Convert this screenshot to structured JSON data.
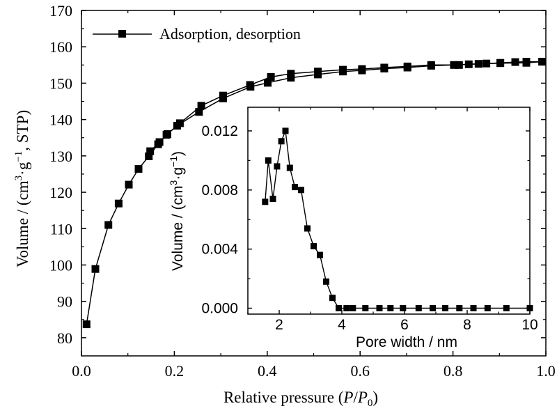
{
  "chart_data": [
    {
      "type": "line",
      "xlabel": "Relative pressure (P/P0)",
      "xlabel_parts": {
        "pre": "Relative pressure (",
        "p1": "P",
        "slash": "/",
        "p2": "P",
        "sub": "0",
        "post": ")"
      },
      "ylabel": "Volume / (cm3·g−1, STP)",
      "ylabel_parts": {
        "pre": "Volume / (cm",
        "sup1": "3",
        "mid": "·g",
        "sup2": "−1",
        "post": ", STP)"
      },
      "xlim": [
        0.0,
        1.0
      ],
      "ylim": [
        75,
        170
      ],
      "x_ticks": [
        "0.0",
        "0.2",
        "0.4",
        "0.6",
        "0.8",
        "1.0"
      ],
      "y_ticks": [
        "80",
        "90",
        "100",
        "110",
        "120",
        "130",
        "140",
        "150",
        "160",
        "170"
      ],
      "legend": {
        "label": "Adsorption, desorption",
        "position": "top-left"
      },
      "series": [
        {
          "name": "Adsorption",
          "x": [
            0.011,
            0.03,
            0.058,
            0.08,
            0.102,
            0.123,
            0.145,
            0.165,
            0.183,
            0.206,
            0.253,
            0.305,
            0.364,
            0.401,
            0.451,
            0.509,
            0.563,
            0.604,
            0.652,
            0.702,
            0.753,
            0.802,
            0.855,
            0.902,
            0.958,
            0.992
          ],
          "y": [
            83.7,
            98.9,
            111.0,
            116.9,
            122.1,
            126.4,
            129.9,
            133.2,
            135.8,
            138.3,
            142.1,
            145.8,
            149.0,
            150.1,
            151.5,
            152.4,
            153.2,
            153.5,
            154.0,
            154.3,
            154.8,
            155.0,
            155.3,
            155.5,
            155.6,
            155.9
          ]
        },
        {
          "name": "Desorption",
          "x": [
            0.992,
            0.958,
            0.934,
            0.902,
            0.872,
            0.834,
            0.813,
            0.753,
            0.702,
            0.652,
            0.604,
            0.563,
            0.509,
            0.451,
            0.408,
            0.363,
            0.305,
            0.258,
            0.212,
            0.185,
            0.168,
            0.148
          ],
          "y": [
            155.9,
            155.9,
            155.8,
            155.6,
            155.4,
            155.2,
            155.0,
            155.0,
            154.6,
            154.3,
            153.9,
            153.7,
            153.2,
            152.6,
            151.7,
            149.5,
            146.6,
            143.8,
            139.0,
            136.0,
            133.8,
            131.3
          ]
        }
      ]
    },
    {
      "type": "line",
      "inset": true,
      "xlabel": "Pore width / nm",
      "ylabel": "Volume / (cm3·g−1)",
      "ylabel_parts": {
        "pre": "Volume / (cm",
        "sup1": "3",
        "mid": "·g",
        "sup2": "−1",
        "post": ")"
      },
      "xlim": [
        1.0,
        10.0
      ],
      "ylim": [
        -0.0004,
        0.0136
      ],
      "x_ticks": [
        "2",
        "4",
        "6",
        "8",
        "10"
      ],
      "y_ticks": [
        "0.000",
        "0.004",
        "0.008",
        "0.012"
      ],
      "series": [
        {
          "name": "",
          "x": [
            1.55,
            1.65,
            1.8,
            1.93,
            2.07,
            2.2,
            2.34,
            2.5,
            2.7,
            2.9,
            3.1,
            3.3,
            3.5,
            3.7,
            3.9,
            4.15,
            4.35,
            4.75,
            5.2,
            5.55,
            5.95,
            6.45,
            6.9,
            7.3,
            7.75,
            8.2,
            8.65,
            9.25,
            10.0
          ],
          "y": [
            0.0072,
            0.01,
            0.0074,
            0.0096,
            0.0113,
            0.012,
            0.0095,
            0.0082,
            0.008,
            0.0054,
            0.0042,
            0.0036,
            0.0018,
            0.0007,
            0.0,
            0.0,
            0.0,
            0.0,
            0.0,
            0.0,
            0.0,
            0.0,
            0.0,
            0.0,
            0.0,
            0.0,
            0.0,
            0.0,
            0.0
          ]
        }
      ]
    }
  ]
}
